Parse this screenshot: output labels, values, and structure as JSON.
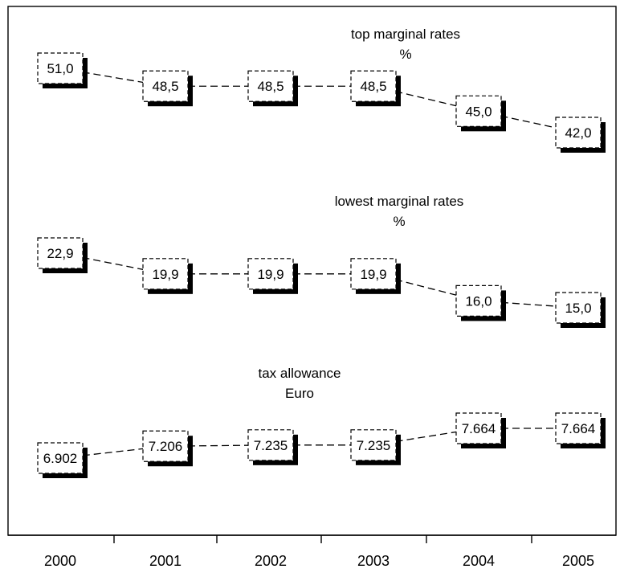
{
  "chart_data": {
    "type": "line",
    "categories": [
      "2000",
      "2001",
      "2002",
      "2003",
      "2004",
      "2005"
    ],
    "series": [
      {
        "title": "top marginal rates",
        "unit": "%",
        "labels": [
          "51,0",
          "48,5",
          "48,5",
          "48,5",
          "45,0",
          "42,0"
        ],
        "values": [
          51.0,
          48.5,
          48.5,
          48.5,
          45.0,
          42.0
        ]
      },
      {
        "title": "lowest marginal rates",
        "unit": "%",
        "labels": [
          "22,9",
          "19,9",
          "19,9",
          "19,9",
          "16,0",
          "15,0"
        ],
        "values": [
          22.9,
          19.9,
          19.9,
          19.9,
          16.0,
          15.0
        ]
      },
      {
        "title": "tax allowance",
        "unit": "Euro",
        "labels": [
          "6.902",
          "7.206",
          "7.235",
          "7.235",
          "7.664",
          "7.664"
        ],
        "values": [
          6902,
          7206,
          7235,
          7235,
          7664,
          7664
        ]
      }
    ],
    "legend": "none",
    "grid": false,
    "line_style": "dashed",
    "point_labels": "boxed with drop shadow"
  }
}
